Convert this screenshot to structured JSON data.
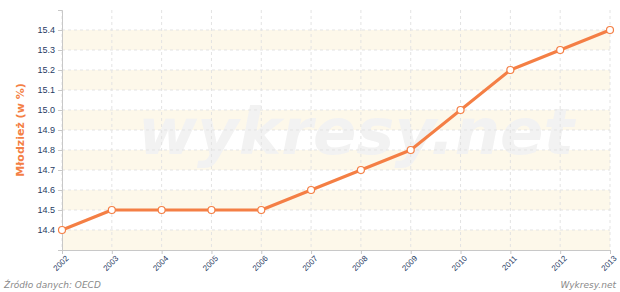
{
  "chart_data": {
    "type": "line",
    "y_label": "Młodzież (w %)",
    "categories": [
      "2002",
      "2003",
      "2004",
      "2005",
      "2006",
      "2007",
      "2008",
      "2009",
      "2010",
      "2011",
      "2012",
      "2013"
    ],
    "values": [
      14.4,
      14.5,
      14.5,
      14.5,
      14.5,
      14.6,
      14.7,
      14.8,
      15.0,
      15.2,
      15.3,
      15.4
    ],
    "color": "#f47f45",
    "marker": "circle",
    "ylim": [
      14.3,
      15.5
    ],
    "yticks": [
      14.4,
      14.5,
      14.6,
      14.7,
      14.8,
      14.9,
      {
        "value": 15,
        "label": "15.0"
      },
      15.1,
      15.2,
      15.3,
      15.4
    ],
    "grid": true,
    "annotations": [
      "Źródło danych: OECD",
      "Wykresy.net",
      "wykresy.net"
    ]
  }
}
